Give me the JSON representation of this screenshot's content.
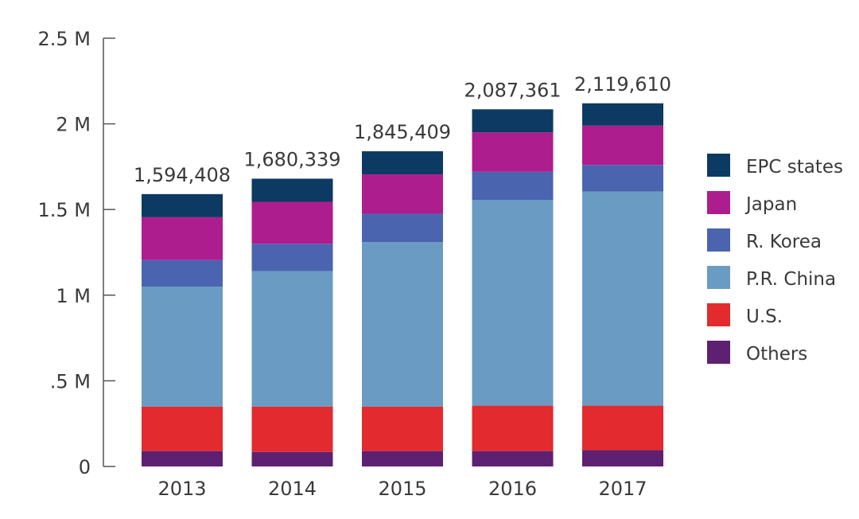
{
  "chart_data": {
    "type": "bar",
    "stacked": true,
    "title": "",
    "xlabel": "",
    "ylabel": "",
    "ylim": [
      0,
      2500000
    ],
    "y_ticks": [
      {
        "value": 0,
        "label": "0"
      },
      {
        "value": 500000,
        "label": ".5 M"
      },
      {
        "value": 1000000,
        "label": "1 M"
      },
      {
        "value": 1500000,
        "label": "1.5 M"
      },
      {
        "value": 2000000,
        "label": "2 M"
      },
      {
        "value": 2500000,
        "label": "2.5 M"
      }
    ],
    "categories": [
      "2013",
      "2014",
      "2015",
      "2016",
      "2017"
    ],
    "totals": [
      "1,594,408",
      "1,680,339",
      "1,845,409",
      "2,087,361",
      "2,119,610"
    ],
    "series": [
      {
        "name": "Others",
        "color": "#5e2070",
        "values": [
          90000,
          85000,
          90000,
          90000,
          95000
        ]
      },
      {
        "name": "U.S.",
        "color": "#e32a2e",
        "values": [
          260000,
          265000,
          260000,
          265000,
          260000
        ]
      },
      {
        "name": "P.R. China",
        "color": "#6a9bc3",
        "values": [
          700000,
          790000,
          960000,
          1200000,
          1250000
        ]
      },
      {
        "name": "R. Korea",
        "color": "#4a64b0",
        "values": [
          155000,
          160000,
          165000,
          165000,
          155000
        ]
      },
      {
        "name": "Japan",
        "color": "#ad1d8e",
        "values": [
          250000,
          245000,
          230000,
          230000,
          230000
        ]
      },
      {
        "name": "EPC states",
        "color": "#0d3a63",
        "values": [
          135000,
          135000,
          135000,
          135000,
          130000
        ]
      }
    ],
    "legend": {
      "position": "right",
      "items": [
        "EPC states",
        "Japan",
        "R. Korea",
        "P.R. China",
        "U.S.",
        "Others"
      ]
    },
    "grid": false
  }
}
